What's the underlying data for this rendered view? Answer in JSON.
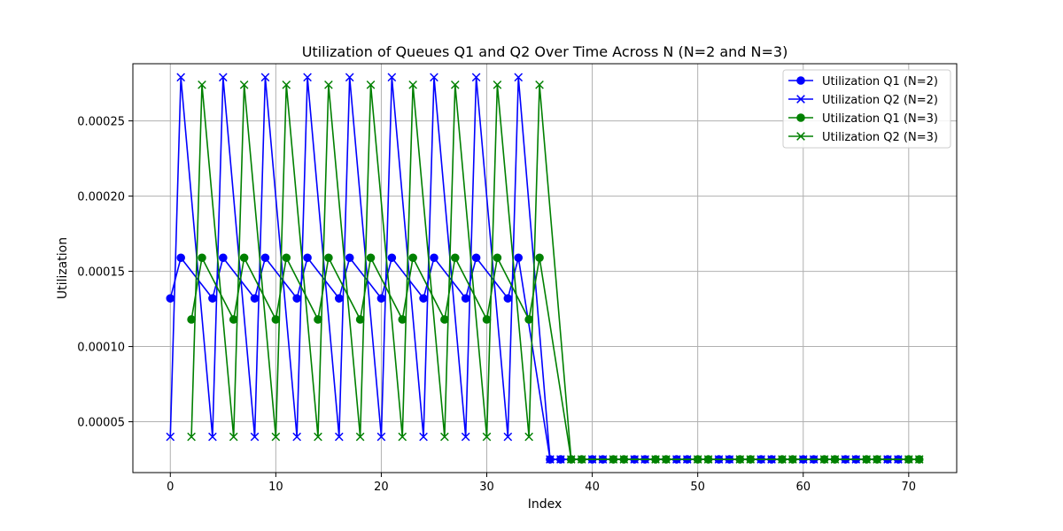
{
  "chart_data": {
    "type": "line",
    "title": "Utilization of Queues Q1 and Q2 Over Time Across N (N=2 and N=3)",
    "xlabel": "Index",
    "ylabel": "Utilization",
    "xlim": [
      -3.55,
      74.55
    ],
    "ylim": [
      1.62e-05,
      0.000288
    ],
    "xticks": [
      0,
      10,
      20,
      30,
      40,
      50,
      60,
      70
    ],
    "xtick_labels": [
      "0",
      "10",
      "20",
      "30",
      "40",
      "50",
      "60",
      "70"
    ],
    "yticks": [
      5e-05,
      0.0001,
      0.00015,
      0.0002,
      0.00025
    ],
    "ytick_labels": [
      "0.00005",
      "0.00010",
      "0.00015",
      "0.00020",
      "0.00025"
    ],
    "grid": true,
    "legend_position": "top-right",
    "series": [
      {
        "name": "Utilization Q1 (N=2)",
        "color": "#0000ff",
        "marker": "circle",
        "x": [
          0,
          1,
          4,
          5,
          8,
          9,
          12,
          13,
          16,
          17,
          20,
          21,
          24,
          25,
          28,
          29,
          32,
          33,
          36,
          37,
          40,
          41,
          44,
          45,
          48,
          49,
          52,
          53,
          56,
          57,
          60,
          61,
          64,
          65,
          68,
          69
        ],
        "y": [
          0.000132,
          0.000159,
          0.000132,
          0.000159,
          0.000132,
          0.000159,
          0.000132,
          0.000159,
          0.000132,
          0.000159,
          0.000132,
          0.000159,
          0.000132,
          0.000159,
          0.000132,
          0.000159,
          0.000132,
          0.000159,
          2.5e-05,
          2.5e-05,
          2.5e-05,
          2.5e-05,
          2.5e-05,
          2.5e-05,
          2.5e-05,
          2.5e-05,
          2.5e-05,
          2.5e-05,
          2.5e-05,
          2.5e-05,
          2.5e-05,
          2.5e-05,
          2.5e-05,
          2.5e-05,
          2.5e-05,
          2.5e-05
        ]
      },
      {
        "name": "Utilization Q2 (N=2)",
        "color": "#0000ff",
        "marker": "x",
        "x": [
          0,
          1,
          4,
          5,
          8,
          9,
          12,
          13,
          16,
          17,
          20,
          21,
          24,
          25,
          28,
          29,
          32,
          33,
          36,
          37,
          40,
          41,
          44,
          45,
          48,
          49,
          52,
          53,
          56,
          57,
          60,
          61,
          64,
          65,
          68,
          69
        ],
        "y": [
          4e-05,
          0.000279,
          4e-05,
          0.000279,
          4e-05,
          0.000279,
          4e-05,
          0.000279,
          4e-05,
          0.000279,
          4e-05,
          0.000279,
          4e-05,
          0.000279,
          4e-05,
          0.000279,
          4e-05,
          0.000279,
          2.5e-05,
          2.5e-05,
          2.5e-05,
          2.5e-05,
          2.5e-05,
          2.5e-05,
          2.5e-05,
          2.5e-05,
          2.5e-05,
          2.5e-05,
          2.5e-05,
          2.5e-05,
          2.5e-05,
          2.5e-05,
          2.5e-05,
          2.5e-05,
          2.5e-05,
          2.5e-05
        ]
      },
      {
        "name": "Utilization Q1 (N=3)",
        "color": "#008000",
        "marker": "circle",
        "x": [
          2,
          3,
          6,
          7,
          10,
          11,
          14,
          15,
          18,
          19,
          22,
          23,
          26,
          27,
          30,
          31,
          34,
          35,
          38,
          39,
          42,
          43,
          46,
          47,
          50,
          51,
          54,
          55,
          58,
          59,
          62,
          63,
          66,
          67,
          70,
          71
        ],
        "y": [
          0.000118,
          0.000159,
          0.000118,
          0.000159,
          0.000118,
          0.000159,
          0.000118,
          0.000159,
          0.000118,
          0.000159,
          0.000118,
          0.000159,
          0.000118,
          0.000159,
          0.000118,
          0.000159,
          0.000118,
          0.000159,
          2.5e-05,
          2.5e-05,
          2.5e-05,
          2.5e-05,
          2.5e-05,
          2.5e-05,
          2.5e-05,
          2.5e-05,
          2.5e-05,
          2.5e-05,
          2.5e-05,
          2.5e-05,
          2.5e-05,
          2.5e-05,
          2.5e-05,
          2.5e-05,
          2.5e-05,
          2.5e-05
        ]
      },
      {
        "name": "Utilization Q2 (N=3)",
        "color": "#008000",
        "marker": "x",
        "x": [
          2,
          3,
          6,
          7,
          10,
          11,
          14,
          15,
          18,
          19,
          22,
          23,
          26,
          27,
          30,
          31,
          34,
          35,
          38,
          39,
          42,
          43,
          46,
          47,
          50,
          51,
          54,
          55,
          58,
          59,
          62,
          63,
          66,
          67,
          70,
          71
        ],
        "y": [
          4e-05,
          0.000274,
          4e-05,
          0.000274,
          4e-05,
          0.000274,
          4e-05,
          0.000274,
          4e-05,
          0.000274,
          4e-05,
          0.000274,
          4e-05,
          0.000274,
          4e-05,
          0.000274,
          4e-05,
          0.000274,
          2.5e-05,
          2.5e-05,
          2.5e-05,
          2.5e-05,
          2.5e-05,
          2.5e-05,
          2.5e-05,
          2.5e-05,
          2.5e-05,
          2.5e-05,
          2.5e-05,
          2.5e-05,
          2.5e-05,
          2.5e-05,
          2.5e-05,
          2.5e-05,
          2.5e-05,
          2.5e-05
        ]
      }
    ]
  }
}
